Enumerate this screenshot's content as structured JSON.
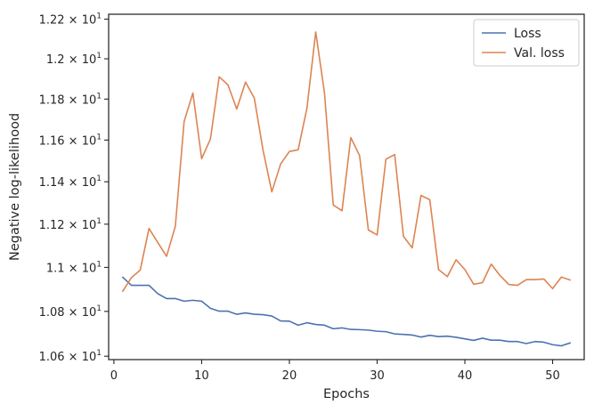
{
  "chart_data": {
    "type": "line",
    "xlabel": "Epochs",
    "ylabel": "Negative log-likelihood",
    "y_scale": "log",
    "xlim": [
      -0.6,
      53.6
    ],
    "ylim": [
      10.585,
      12.225
    ],
    "x_ticks": [
      0,
      10,
      20,
      30,
      40,
      50
    ],
    "y_ticks": [
      10.6,
      10.8,
      11.0,
      11.2,
      11.4,
      11.6,
      11.8,
      12.0,
      12.2
    ],
    "y_tick_labels": [
      {
        "mantissa": "1.06",
        "base": "10",
        "exp": "1"
      },
      {
        "mantissa": "1.08",
        "base": "10",
        "exp": "1"
      },
      {
        "mantissa": "1.1",
        "base": "10",
        "exp": "1"
      },
      {
        "mantissa": "1.12",
        "base": "10",
        "exp": "1"
      },
      {
        "mantissa": "1.14",
        "base": "10",
        "exp": "1"
      },
      {
        "mantissa": "1.16",
        "base": "10",
        "exp": "1"
      },
      {
        "mantissa": "1.18",
        "base": "10",
        "exp": "1"
      },
      {
        "mantissa": "1.2",
        "base": "10",
        "exp": "1"
      },
      {
        "mantissa": "1.22",
        "base": "10",
        "exp": "1"
      }
    ],
    "grid": false,
    "legend_position": "top-right",
    "series": [
      {
        "name": "Loss",
        "color": "#4c72b0",
        "x": [
          1,
          2,
          3,
          4,
          5,
          6,
          7,
          8,
          9,
          10,
          11,
          12,
          13,
          14,
          15,
          16,
          17,
          18,
          19,
          20,
          21,
          22,
          23,
          24,
          25,
          26,
          27,
          28,
          29,
          30,
          31,
          32,
          33,
          34,
          35,
          36,
          37,
          38,
          39,
          40,
          41,
          42,
          43,
          44,
          45,
          46,
          47,
          48,
          49,
          50,
          51,
          52
        ],
        "values": [
          10.955,
          10.918,
          10.918,
          10.918,
          10.88,
          10.858,
          10.858,
          10.846,
          10.85,
          10.846,
          10.814,
          10.801,
          10.801,
          10.787,
          10.793,
          10.787,
          10.785,
          10.779,
          10.757,
          10.756,
          10.738,
          10.749,
          10.741,
          10.738,
          10.722,
          10.726,
          10.719,
          10.718,
          10.716,
          10.711,
          10.709,
          10.699,
          10.697,
          10.694,
          10.685,
          10.693,
          10.687,
          10.689,
          10.684,
          10.677,
          10.67,
          10.68,
          10.671,
          10.671,
          10.665,
          10.665,
          10.656,
          10.665,
          10.662,
          10.651,
          10.646,
          10.659
        ]
      },
      {
        "name": "Val. loss",
        "color": "#dd8452",
        "x": [
          1,
          2,
          3,
          4,
          5,
          6,
          7,
          8,
          9,
          10,
          11,
          12,
          13,
          14,
          15,
          16,
          17,
          18,
          19,
          20,
          21,
          22,
          23,
          24,
          25,
          26,
          27,
          28,
          29,
          30,
          31,
          32,
          33,
          34,
          35,
          36,
          37,
          38,
          39,
          40,
          41,
          42,
          43,
          44,
          45,
          46,
          47,
          48,
          49,
          50,
          51,
          52
        ],
        "values": [
          10.891,
          10.953,
          10.988,
          11.18,
          11.115,
          11.051,
          11.19,
          11.69,
          11.83,
          11.51,
          11.605,
          11.91,
          11.87,
          11.751,
          11.884,
          11.805,
          11.55,
          11.352,
          11.485,
          11.545,
          11.553,
          11.755,
          12.135,
          11.83,
          11.29,
          11.263,
          11.612,
          11.525,
          11.173,
          11.15,
          11.508,
          11.53,
          11.143,
          11.09,
          11.335,
          11.315,
          10.99,
          10.958,
          11.035,
          10.99,
          10.923,
          10.93,
          11.015,
          10.963,
          10.922,
          10.918,
          10.944,
          10.944,
          10.947,
          10.903,
          10.956,
          10.942
        ]
      }
    ]
  }
}
